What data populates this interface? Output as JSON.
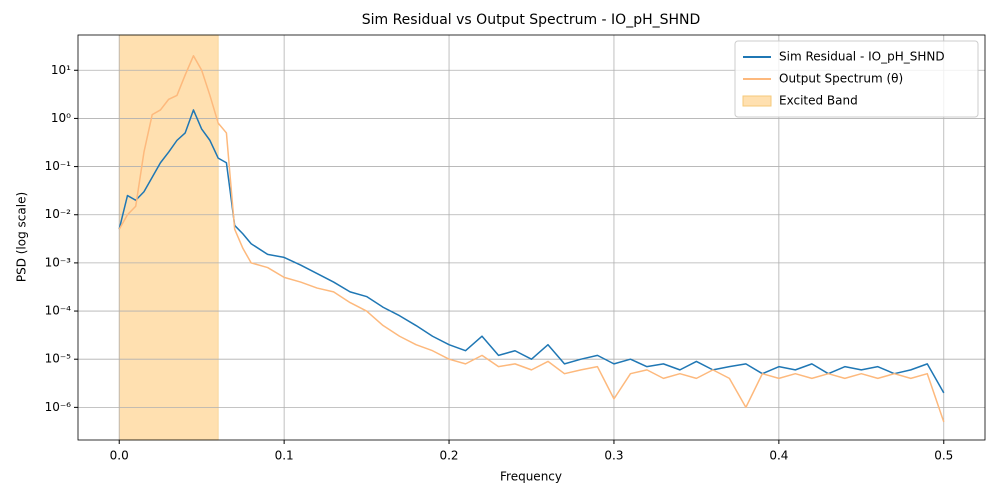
{
  "chart_data": {
    "type": "line",
    "title": "Sim Residual vs Output Spectrum - IO_pH_SHND",
    "x_label": "Frequency",
    "y_label": "PSD (log scale)",
    "y_log": true,
    "grid": true,
    "legend": "upper right",
    "xlim": [
      -0.025,
      0.525
    ],
    "ylim": [
      2.1e-07,
      54
    ],
    "xticks": [
      {
        "value": 0,
        "label": "0.0"
      },
      0.1,
      0.2,
      0.3,
      0.4,
      0.5
    ],
    "yticks": [
      {
        "value": 1e-06,
        "label": "10⁻⁶"
      },
      {
        "value": 1e-05,
        "label": "10⁻⁵"
      },
      {
        "value": 0.0001,
        "label": "10⁻⁴"
      },
      {
        "value": 0.001,
        "label": "10⁻³"
      },
      {
        "value": 0.01,
        "label": "10⁻²"
      },
      {
        "value": 0.1,
        "label": "10⁻¹"
      },
      {
        "value": 1,
        "label": "10⁰"
      },
      {
        "value": 10,
        "label": "10¹"
      }
    ],
    "x": [
      0,
      0.005,
      0.01,
      0.015,
      0.02,
      0.025,
      0.03,
      0.035,
      0.04,
      0.045,
      0.05,
      0.055,
      0.06,
      0.065,
      0.07,
      0.075,
      0.08,
      0.09,
      0.1,
      0.11,
      0.12,
      0.13,
      0.14,
      0.15,
      0.16,
      0.17,
      0.18,
      0.19,
      0.2,
      0.21,
      0.22,
      0.23,
      0.24,
      0.25,
      0.26,
      0.27,
      0.28,
      0.29,
      0.3,
      0.31,
      0.32,
      0.33,
      0.34,
      0.35,
      0.36,
      0.37,
      0.38,
      0.39,
      0.4,
      0.41,
      0.42,
      0.43,
      0.44,
      0.45,
      0.46,
      0.47,
      0.48,
      0.49,
      0.5
    ],
    "series": [
      {
        "name": "Sim Residual - IO_pH_SHND",
        "color": "#1f77b4",
        "values": [
          0.005,
          0.025,
          0.02,
          0.03,
          0.06,
          0.12,
          0.2,
          0.35,
          0.5,
          1.5,
          0.6,
          0.35,
          0.15,
          0.12,
          0.006,
          0.004,
          0.0025,
          0.0015,
          0.0013,
          0.0009,
          0.0006,
          0.0004,
          0.00025,
          0.0002,
          0.00012,
          8e-05,
          5e-05,
          3e-05,
          2e-05,
          1.5e-05,
          3e-05,
          1.2e-05,
          1.5e-05,
          1e-05,
          2e-05,
          8e-06,
          1e-05,
          1.2e-05,
          8e-06,
          1e-05,
          7e-06,
          8e-06,
          6e-06,
          9e-06,
          6e-06,
          7e-06,
          8e-06,
          5e-06,
          7e-06,
          6e-06,
          8e-06,
          5e-06,
          7e-06,
          6e-06,
          7e-06,
          5e-06,
          6e-06,
          8e-06,
          2e-06
        ]
      },
      {
        "name": "Output Spectrum (θ)",
        "color": "#fdb97d",
        "values": [
          0.005,
          0.01,
          0.015,
          0.2,
          1.2,
          1.5,
          2.5,
          3,
          8,
          20,
          10,
          3,
          0.8,
          0.5,
          0.005,
          0.002,
          0.001,
          0.0008,
          0.0005,
          0.0004,
          0.0003,
          0.00025,
          0.00015,
          0.0001,
          5e-05,
          3e-05,
          2e-05,
          1.5e-05,
          1e-05,
          8e-06,
          1.2e-05,
          7e-06,
          8e-06,
          6e-06,
          9e-06,
          5e-06,
          6e-06,
          7e-06,
          1.5e-06,
          5e-06,
          6e-06,
          4e-06,
          5e-06,
          4e-06,
          6e-06,
          4e-06,
          1e-06,
          5e-06,
          4e-06,
          5e-06,
          4e-06,
          5e-06,
          4e-06,
          5e-06,
          4e-06,
          5e-06,
          4e-06,
          5e-06,
          5e-07
        ]
      }
    ],
    "shaded_regions": [
      {
        "name": "Excited Band",
        "xrange": [
          0,
          0.06
        ],
        "color": "#ffe0b0"
      }
    ]
  }
}
